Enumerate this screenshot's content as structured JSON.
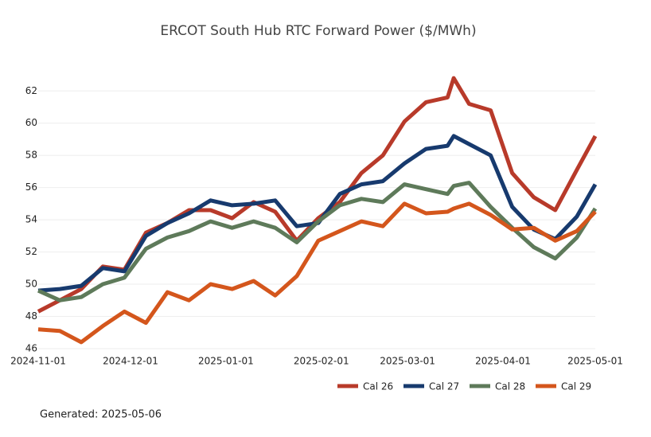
{
  "chart_data": {
    "type": "line",
    "title": "ERCOT South Hub RTC Forward Power ($/MWh)",
    "footnote": "Generated: 2025-05-06",
    "x": [
      "2024-11-01",
      "2024-11-08",
      "2024-11-15",
      "2024-11-22",
      "2024-11-29",
      "2024-12-06",
      "2024-12-13",
      "2024-12-20",
      "2024-12-27",
      "2025-01-03",
      "2025-01-10",
      "2025-01-17",
      "2025-01-24",
      "2025-01-31",
      "2025-02-07",
      "2025-02-14",
      "2025-02-21",
      "2025-02-28",
      "2025-03-07",
      "2025-03-14",
      "2025-03-16",
      "2025-03-21",
      "2025-03-28",
      "2025-04-04",
      "2025-04-11",
      "2025-04-18",
      "2025-04-25",
      "2025-05-01"
    ],
    "series": [
      {
        "name": "Cal 26",
        "color": "#b83a2a",
        "values": [
          48.3,
          49.0,
          49.7,
          51.1,
          50.9,
          53.2,
          53.8,
          54.6,
          54.6,
          54.1,
          55.1,
          54.5,
          52.7,
          54.1,
          55.1,
          56.9,
          58.0,
          60.1,
          61.3,
          61.6,
          62.8,
          61.2,
          60.8,
          56.9,
          55.4,
          54.6,
          57.1,
          59.2
        ]
      },
      {
        "name": "Cal 27",
        "color": "#173a6e",
        "values": [
          49.6,
          49.7,
          49.9,
          51.0,
          50.8,
          53.0,
          53.8,
          54.4,
          55.2,
          54.9,
          55.0,
          55.2,
          53.6,
          53.8,
          55.6,
          56.2,
          56.4,
          57.5,
          58.4,
          58.6,
          59.2,
          58.7,
          58.0,
          54.8,
          53.4,
          52.8,
          54.2,
          56.2
        ]
      },
      {
        "name": "Cal 28",
        "color": "#5e7a5a",
        "values": [
          49.6,
          49.0,
          49.2,
          50.0,
          50.4,
          52.2,
          52.9,
          53.3,
          53.9,
          53.5,
          53.9,
          53.5,
          52.6,
          53.9,
          54.9,
          55.3,
          55.1,
          56.2,
          55.9,
          55.6,
          56.1,
          56.3,
          54.8,
          53.5,
          52.3,
          51.6,
          52.9,
          54.7
        ]
      },
      {
        "name": "Cal 29",
        "color": "#d4561c",
        "values": [
          47.2,
          47.1,
          46.4,
          47.4,
          48.3,
          47.6,
          49.5,
          49.0,
          50.0,
          49.7,
          50.2,
          49.3,
          50.5,
          52.7,
          53.3,
          53.9,
          53.6,
          55.0,
          54.4,
          54.5,
          54.7,
          55.0,
          54.3,
          53.4,
          53.5,
          52.7,
          53.3,
          54.5
        ]
      }
    ],
    "xlim": [
      "2024-11-01",
      "2025-05-01"
    ],
    "xticks": [
      "2024-11-01",
      "2024-12-01",
      "2025-01-01",
      "2025-02-01",
      "2025-03-01",
      "2025-04-01",
      "2025-05-01"
    ],
    "ylim": [
      45.8,
      63.2
    ],
    "yticks": [
      46,
      48,
      50,
      52,
      54,
      56,
      58,
      60,
      62
    ],
    "grid": true,
    "legend": "bottom-right"
  }
}
